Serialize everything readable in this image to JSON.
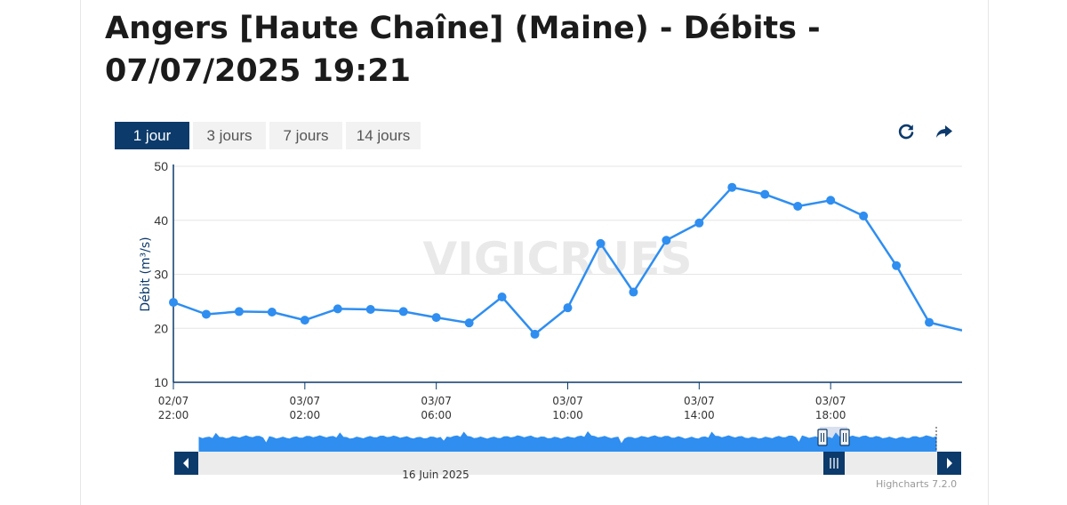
{
  "title": "Angers [Haute Chaîne] (Maine) - Débits - 07/07/2025 19:21",
  "range_buttons": [
    {
      "label": "1 jour",
      "active": true
    },
    {
      "label": "3 jours",
      "active": false
    },
    {
      "label": "7 jours",
      "active": false
    },
    {
      "label": "14 jours",
      "active": false
    }
  ],
  "toolbar": {
    "refresh_icon": "refresh-icon",
    "share_icon": "share-arrow-icon"
  },
  "watermark": "VIGICRUES",
  "credits": "Highcharts 7.2.0",
  "navigator": {
    "date_label": "16 Juin 2025"
  },
  "colors": {
    "series": "#2f8ef0",
    "accent": "#0c3a6b",
    "grid": "#e6e6e6"
  },
  "chart_data": {
    "type": "line",
    "ylabel": "Débit (m³/s)",
    "ylim": [
      10,
      50
    ],
    "yticks": [
      10,
      20,
      30,
      40,
      50
    ],
    "xlim": [
      "2025-07-02 22:00",
      "2025-07-03 22:00"
    ],
    "xticks": [
      {
        "t": "2025-07-02 22:00",
        "line1": "02/07",
        "line2": "22:00"
      },
      {
        "t": "2025-07-03 02:00",
        "line1": "03/07",
        "line2": "02:00"
      },
      {
        "t": "2025-07-03 06:00",
        "line1": "03/07",
        "line2": "06:00"
      },
      {
        "t": "2025-07-03 10:00",
        "line1": "03/07",
        "line2": "10:00"
      },
      {
        "t": "2025-07-03 14:00",
        "line1": "03/07",
        "line2": "14:00"
      },
      {
        "t": "2025-07-03 18:00",
        "line1": "03/07",
        "line2": "18:00"
      }
    ],
    "grid": true,
    "series": [
      {
        "points": [
          {
            "t": "2025-07-02 22:00",
            "y": 24.8
          },
          {
            "t": "2025-07-02 23:00",
            "y": 22.6
          },
          {
            "t": "2025-07-03 00:00",
            "y": 23.1
          },
          {
            "t": "2025-07-03 01:00",
            "y": 23.0
          },
          {
            "t": "2025-07-03 02:00",
            "y": 21.5
          },
          {
            "t": "2025-07-03 03:00",
            "y": 23.6
          },
          {
            "t": "2025-07-03 04:00",
            "y": 23.5
          },
          {
            "t": "2025-07-03 05:00",
            "y": 23.1
          },
          {
            "t": "2025-07-03 06:00",
            "y": 22.0
          },
          {
            "t": "2025-07-03 07:00",
            "y": 21.0
          },
          {
            "t": "2025-07-03 08:00",
            "y": 25.8
          },
          {
            "t": "2025-07-03 09:00",
            "y": 18.9
          },
          {
            "t": "2025-07-03 10:00",
            "y": 23.8
          },
          {
            "t": "2025-07-03 11:00",
            "y": 35.7
          },
          {
            "t": "2025-07-03 12:00",
            "y": 26.7
          },
          {
            "t": "2025-07-03 13:00",
            "y": 36.3
          },
          {
            "t": "2025-07-03 14:00",
            "y": 39.5
          },
          {
            "t": "2025-07-03 15:00",
            "y": 46.1
          },
          {
            "t": "2025-07-03 16:00",
            "y": 44.8
          },
          {
            "t": "2025-07-03 17:00",
            "y": 42.6
          },
          {
            "t": "2025-07-03 18:00",
            "y": 43.7
          },
          {
            "t": "2025-07-03 19:00",
            "y": 40.8
          },
          {
            "t": "2025-07-03 20:00",
            "y": 31.6
          },
          {
            "t": "2025-07-03 21:00",
            "y": 21.1
          },
          {
            "t": "2025-07-03 22:00",
            "y": 19.6
          }
        ]
      }
    ]
  }
}
